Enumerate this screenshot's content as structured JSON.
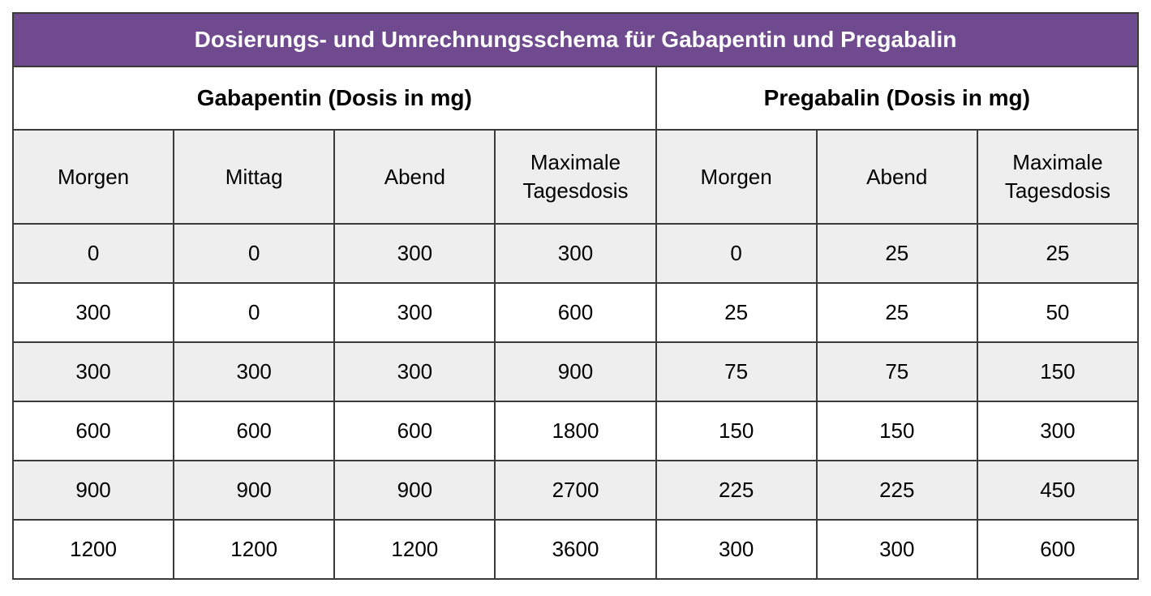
{
  "table": {
    "type": "table",
    "title": "Dosierungs- und Umrechnungsschema für Gabapentin und Pregabalin",
    "colors": {
      "title_bg": "#6f4a8e",
      "title_text": "#ffffff",
      "group_bg": "#ffffff",
      "sub_bg": "#eeeeee",
      "row_bg": "#eeeeee",
      "row_alt_bg": "#ffffff",
      "border": "#3a3a3a",
      "text": "#000000"
    },
    "fontsizes": {
      "title": 28,
      "group": 28,
      "sub": 26,
      "cell": 26
    },
    "groups": [
      {
        "label": "Gabapentin (Dosis in mg)",
        "span": 4
      },
      {
        "label": "Pregabalin (Dosis in mg)",
        "span": 3
      }
    ],
    "columns": [
      "Morgen",
      "Mittag",
      "Abend",
      "Maximale Tagesdosis",
      "Morgen",
      "Abend",
      "Maximale Tagesdosis"
    ],
    "column_widths_pct": [
      14.3,
      14.3,
      14.3,
      14.3,
      14.3,
      14.3,
      14.2
    ],
    "rows": [
      [
        "0",
        "0",
        "300",
        "300",
        "0",
        "25",
        "25"
      ],
      [
        "300",
        "0",
        "300",
        "600",
        "25",
        "25",
        "50"
      ],
      [
        "300",
        "300",
        "300",
        "900",
        "75",
        "75",
        "150"
      ],
      [
        "600",
        "600",
        "600",
        "1800",
        "150",
        "150",
        "300"
      ],
      [
        "900",
        "900",
        "900",
        "2700",
        "225",
        "225",
        "450"
      ],
      [
        "1200",
        "1200",
        "1200",
        "3600",
        "300",
        "300",
        "600"
      ]
    ]
  }
}
